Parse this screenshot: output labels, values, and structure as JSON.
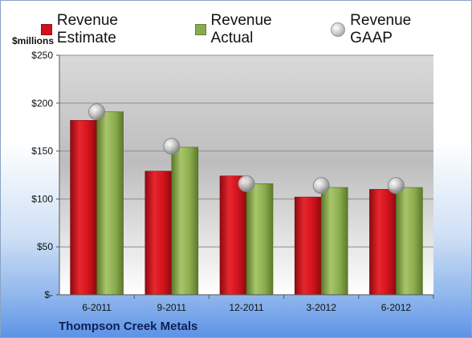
{
  "company": "Thompson Creek Metals",
  "colors": {
    "estimate": "#d0121b",
    "actual": "#8aab4d",
    "gaap": "#b8b8b8"
  },
  "chart_data": {
    "type": "bar",
    "ylabel": "$millions",
    "ylim": [
      0,
      250
    ],
    "y_ticks": [
      0,
      50,
      100,
      150,
      200,
      250
    ],
    "y_tick_labels": [
      "$-",
      "$50",
      "$100",
      "$150",
      "$200",
      "$250"
    ],
    "categories": [
      "6-2011",
      "9-2011",
      "12-2011",
      "3-2012",
      "6-2012"
    ],
    "grid": true,
    "legend_position": "top",
    "series": [
      {
        "name": "Revenue Estimate",
        "values": [
          182,
          129,
          124,
          102,
          110
        ]
      },
      {
        "name": "Revenue Actual",
        "values": [
          191,
          154,
          116,
          112,
          112
        ]
      },
      {
        "name": "Revenue GAAP",
        "values": [
          191,
          155,
          116,
          114,
          114
        ]
      }
    ]
  }
}
